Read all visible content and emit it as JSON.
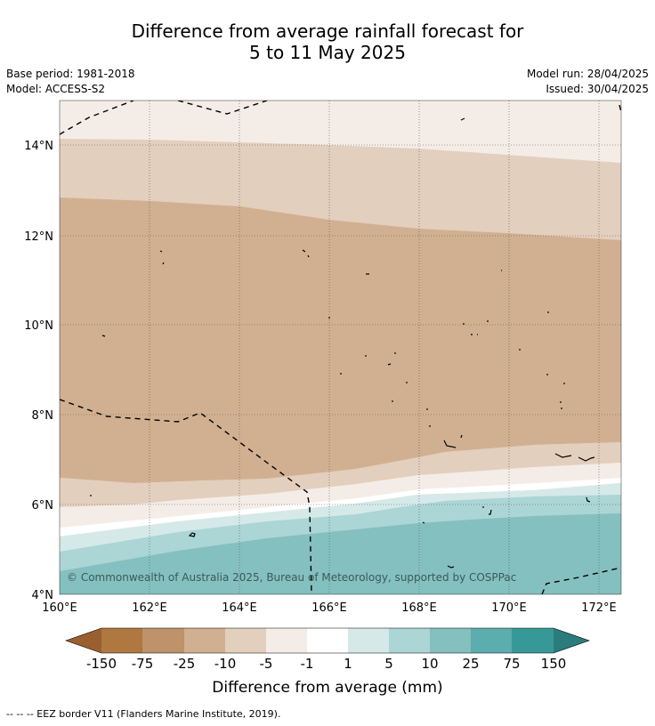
{
  "header": {
    "title_line1": "Difference from average rainfall forecast for",
    "title_line2": "5 to 11 May 2025",
    "base_period": "Base period: 1981-2018",
    "model": "Model: ACCESS-S2",
    "model_run": "Model run: 28/04/2025",
    "issued": "Issued: 30/04/2025"
  },
  "map": {
    "lat_labels": [
      "4°N",
      "6°N",
      "8°N",
      "10°N",
      "12°N",
      "14°N"
    ],
    "lon_labels": [
      "160°E",
      "162°E",
      "164°E",
      "166°E",
      "168°E",
      "170°E",
      "172°E"
    ],
    "copyright": "© Commonwealth of Australia 2025, Bureau of Meteorology, supported by COSPPac",
    "ocean_color": "#ffffff"
  },
  "legend": {
    "labels": [
      "-150",
      "-75",
      "-25",
      "-10",
      "-5",
      "-1",
      "1",
      "5",
      "10",
      "25",
      "75",
      "150"
    ],
    "colors": [
      "#9a5f2e",
      "#ae7840",
      "#be926a",
      "#d1b091",
      "#e3cfbd",
      "#f4ede7",
      "#ffffff",
      "#d5e9e8",
      "#acd5d5",
      "#84c0bf",
      "#5cadad",
      "#369998",
      "#2a7d7c"
    ],
    "title": "Difference from average (mm)"
  },
  "footer": {
    "text": "--  --  -- EEZ border V11 (Flanders Marine Institute, 2019)."
  }
}
